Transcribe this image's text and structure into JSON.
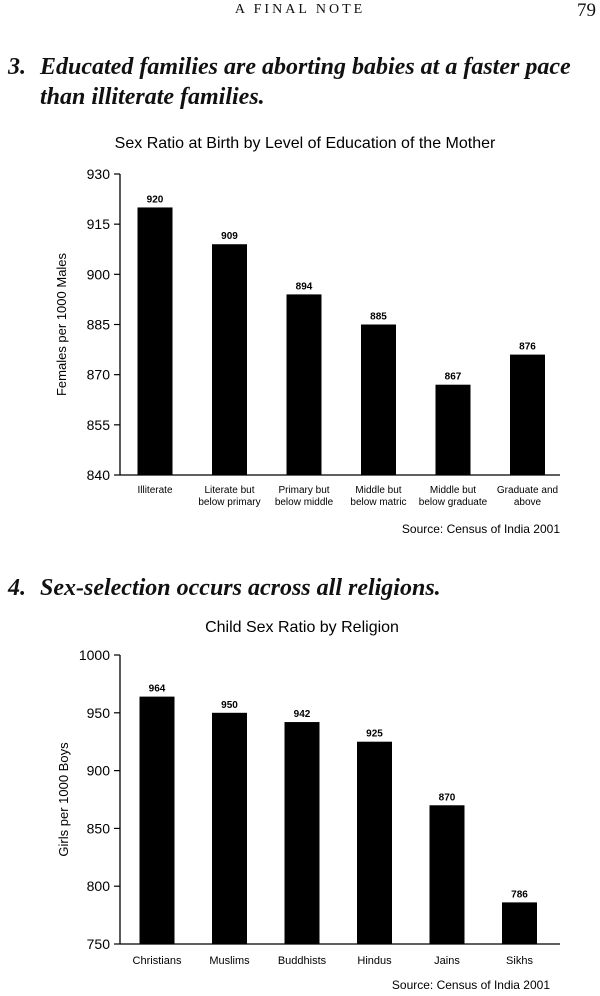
{
  "header": {
    "running_head": "A FINAL NOTE",
    "page_number": "79"
  },
  "sections": [
    {
      "number": "3.",
      "heading": "Educated families are aborting babies at a faster pace than illiterate families."
    },
    {
      "number": "4.",
      "heading": "Sex-selection occurs across all religions."
    }
  ],
  "chart_data": [
    {
      "type": "bar",
      "title": "Sex Ratio at Birth by Level of Education of the Mother",
      "xlabel": "",
      "ylabel": "Females per 1000 Males",
      "ylim": [
        840,
        930
      ],
      "yticks": [
        840,
        855,
        870,
        885,
        900,
        915,
        930
      ],
      "categories": [
        [
          "Illiterate"
        ],
        [
          "Literate but",
          "below primary"
        ],
        [
          "Primary but",
          "below middle"
        ],
        [
          "Middle but",
          "below matric"
        ],
        [
          "Middle but",
          "below graduate"
        ],
        [
          "Graduate and",
          "above"
        ]
      ],
      "values": [
        920,
        909,
        894,
        885,
        867,
        876
      ],
      "source": "Source: Census of India 2001",
      "bar_color": "#000000",
      "grid": false
    },
    {
      "type": "bar",
      "title": "Child Sex Ratio by Religion",
      "xlabel": "",
      "ylabel": "Girls per 1000 Boys",
      "ylim": [
        750,
        1000
      ],
      "yticks": [
        750,
        800,
        850,
        900,
        950,
        1000
      ],
      "categories": [
        [
          "Christians"
        ],
        [
          "Muslims"
        ],
        [
          "Buddhists"
        ],
        [
          "Hindus"
        ],
        [
          "Jains"
        ],
        [
          "Sikhs"
        ]
      ],
      "values": [
        964,
        950,
        942,
        925,
        870,
        786
      ],
      "source": "Source: Census of India 2001",
      "bar_color": "#000000",
      "grid": false
    }
  ]
}
